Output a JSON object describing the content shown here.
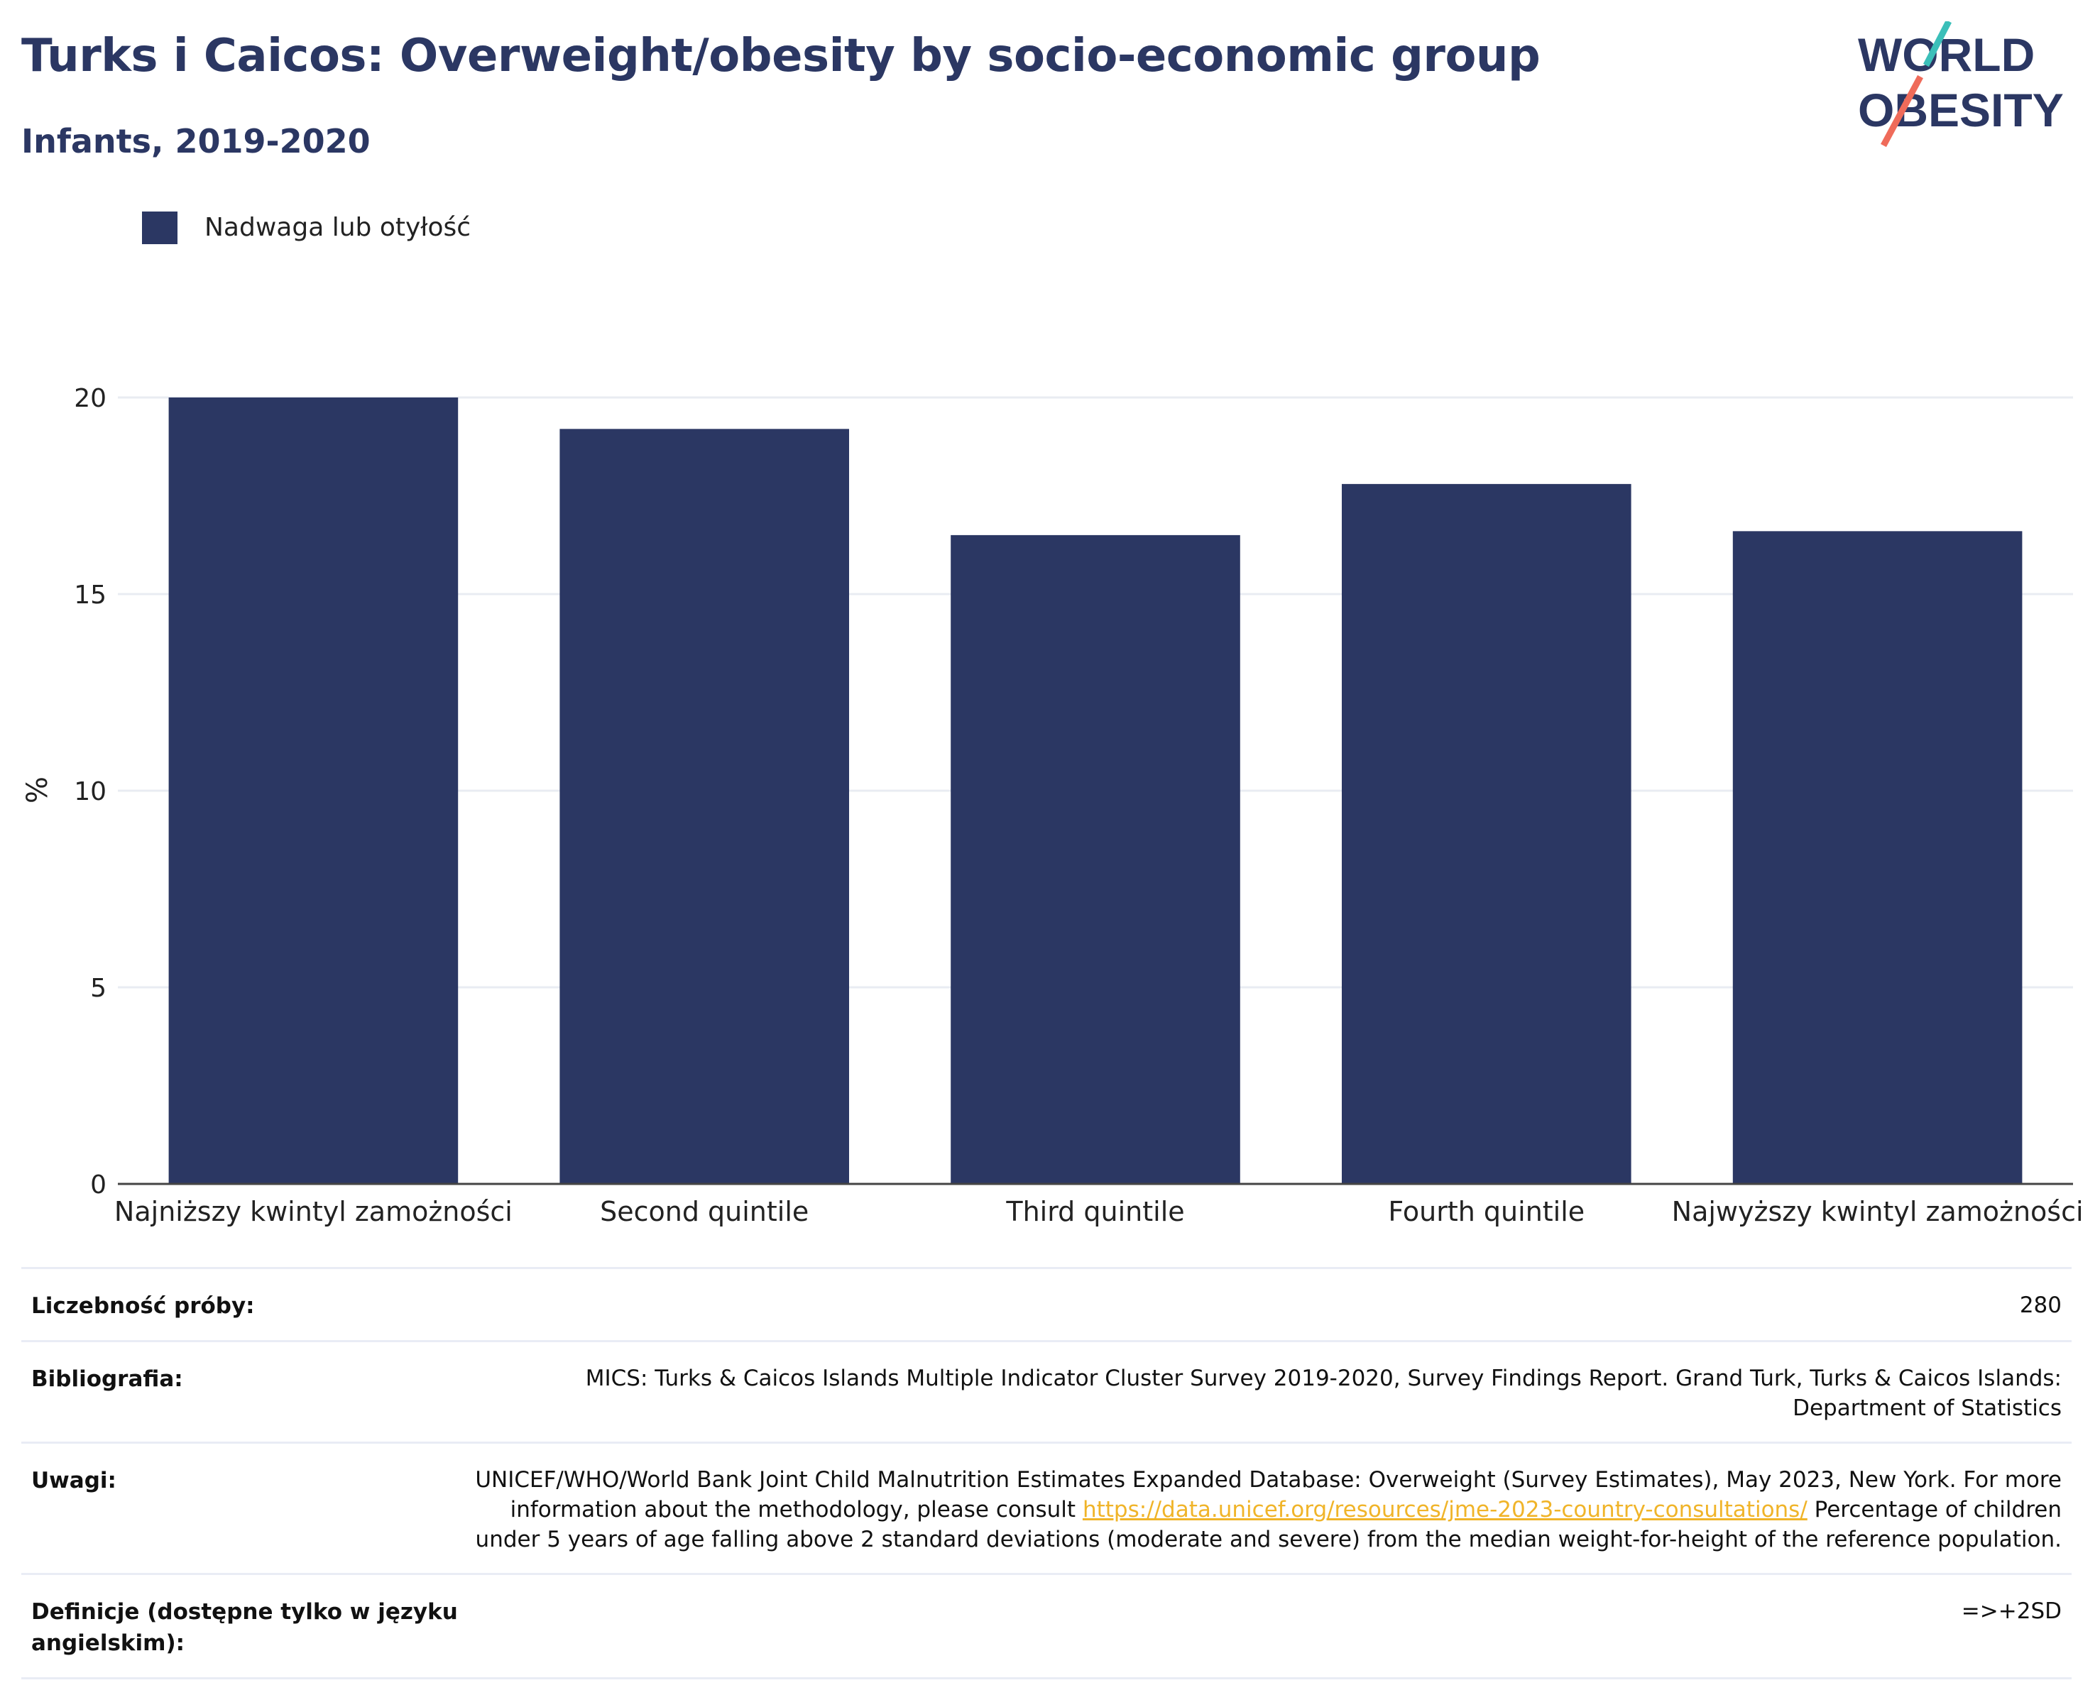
{
  "header": {
    "title": "Turks i Caicos: Overweight/obesity by socio-economic group",
    "subtitle": "Infants, 2019-2020",
    "logo_line1": "WORLD",
    "logo_line2": "OBESITY"
  },
  "legend": {
    "label": "Nadwaga lub otyłość"
  },
  "colors": {
    "bar": "#2b3763",
    "title": "#2b3763",
    "grid": "#e9ecf2",
    "link": "#f0b429",
    "logo_teal": "#3bbfb9",
    "logo_red": "#ef6b5a"
  },
  "chart_data": {
    "type": "bar",
    "categories": [
      "Najniższy kwintyl zamożności",
      "Second quintile",
      "Third quintile",
      "Fourth quintile",
      "Najwyższy kwintyl zamożności"
    ],
    "series": [
      {
        "name": "Nadwaga lub otyłość",
        "values": [
          20.0,
          19.2,
          16.5,
          17.8,
          16.6
        ]
      }
    ],
    "ylabel": "%",
    "ylim": [
      0,
      20
    ],
    "yticks": [
      0,
      5,
      10,
      15,
      20
    ],
    "grid": true,
    "legend_position": "top-left"
  },
  "table": [
    {
      "label": "Liczebność próby:",
      "value": "280"
    },
    {
      "label": "Bibliografia:",
      "value": "MICS: Turks & Caicos Islands Multiple Indicator Cluster Survey 2019-2020, Survey Findings Report. Grand Turk, Turks & Caicos Islands: Department of Statistics"
    },
    {
      "label": "Uwagi:",
      "value_before": "UNICEF/WHO/World Bank Joint Child Malnutrition Estimates Expanded Database: Overweight (Survey Estimates), May 2023, New York. For more information about the methodology, please consult ",
      "link": "https://data.unicef.org/resources/jme-2023-country-consultations/",
      "value_after": " Percentage of children under 5 years of age falling above 2 standard deviations (moderate and severe) from the median weight-for-height of the reference population."
    },
    {
      "label": "Definicje (dostępne tylko w języku angielskim):",
      "value": "=>+2SD"
    }
  ]
}
